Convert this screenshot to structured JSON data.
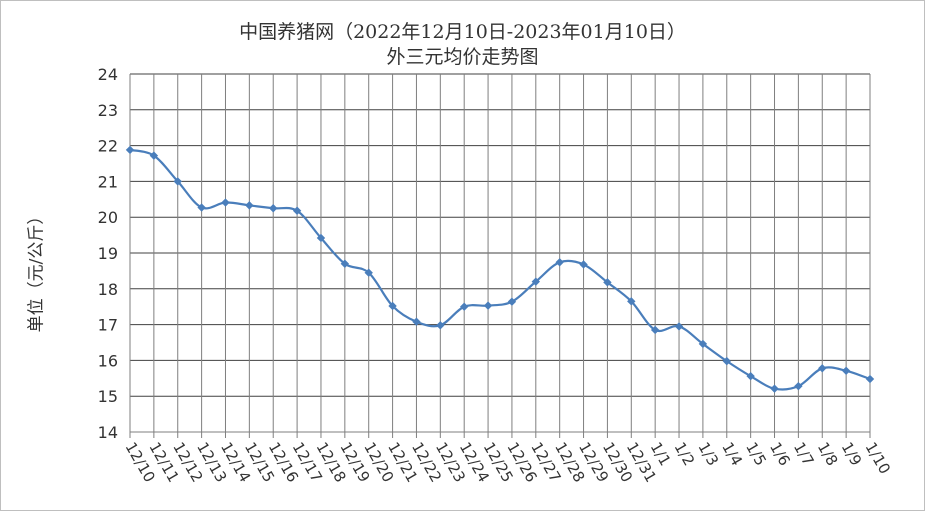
{
  "chart_data": {
    "type": "line",
    "title": "中国养猪网（2022年12月10日-2023年01月10日）",
    "subtitle": "外三元均价走势图",
    "xlabel": "",
    "ylabel": "单位（元/公斤）",
    "ylim": [
      14,
      24
    ],
    "yticks": [
      14,
      15,
      16,
      17,
      18,
      19,
      20,
      21,
      22,
      23,
      24
    ],
    "grid": true,
    "legend": "none",
    "line_color": "#4a7ebb",
    "categories": [
      "12/10",
      "12/11",
      "12/12",
      "12/13",
      "12/14",
      "12/15",
      "12/16",
      "12/17",
      "12/18",
      "12/19",
      "12/20",
      "12/21",
      "12/22",
      "12/23",
      "12/24",
      "12/25",
      "12/26",
      "12/27",
      "12/28",
      "12/29",
      "12/30",
      "12/31",
      "1/1",
      "1/2",
      "1/3",
      "1/4",
      "1/5",
      "1/6",
      "1/7",
      "1/8",
      "1/9",
      "1/10"
    ],
    "series": [
      {
        "values": [
          21.88,
          21.72,
          21.0,
          20.27,
          20.41,
          20.33,
          20.25,
          20.18,
          19.42,
          18.7,
          18.45,
          17.52,
          17.08,
          16.98,
          17.5,
          17.53,
          17.64,
          18.2,
          18.74,
          18.68,
          18.18,
          17.65,
          16.85,
          16.95,
          16.46,
          15.98,
          15.56,
          15.21,
          15.28,
          15.78,
          15.71,
          15.48
        ]
      }
    ]
  }
}
